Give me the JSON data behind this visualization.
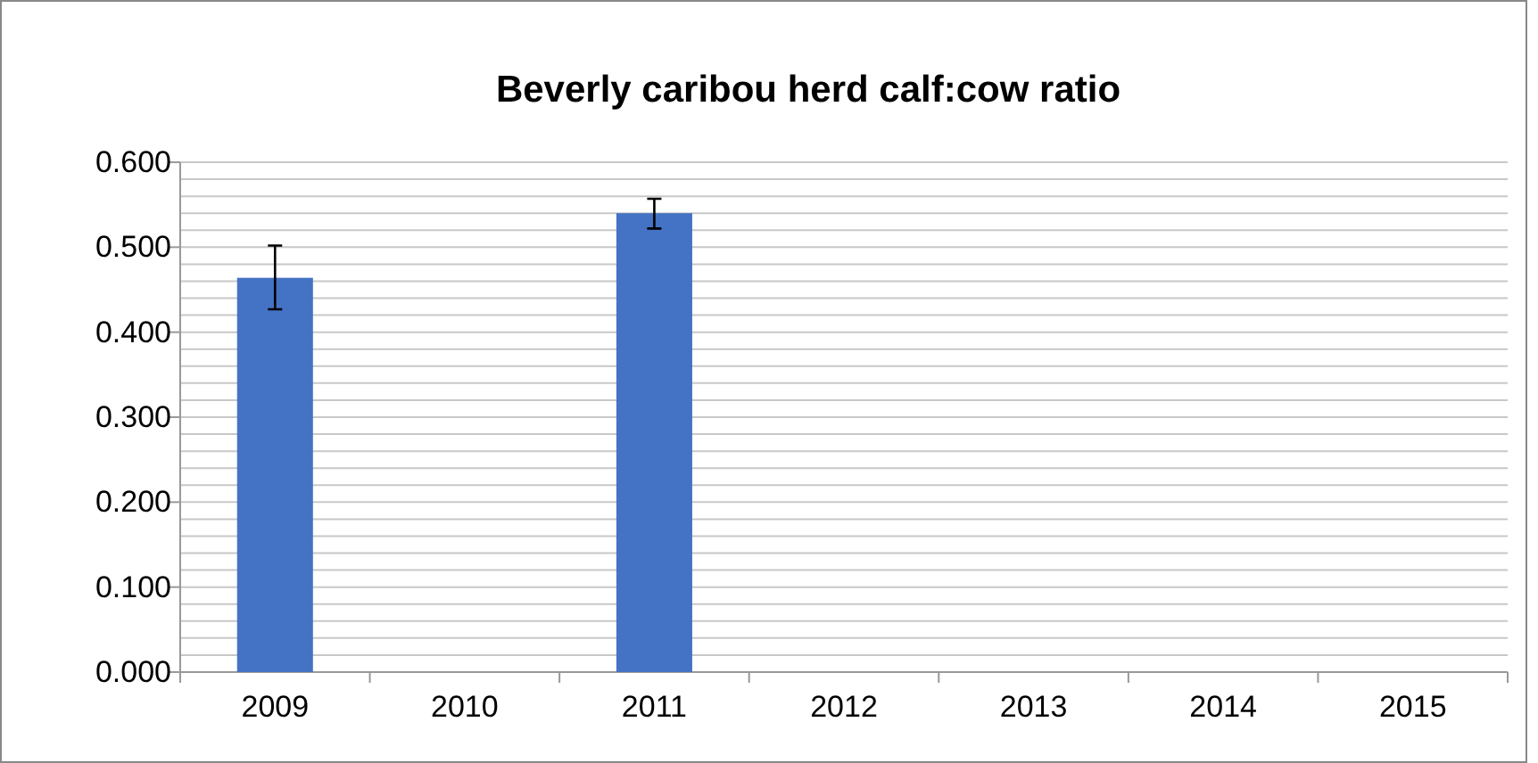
{
  "chart_data": {
    "type": "bar",
    "title": "Beverly caribou herd calf:cow ratio",
    "categories": [
      "2009",
      "2010",
      "2011",
      "2012",
      "2013",
      "2014",
      "2015"
    ],
    "values": [
      0.464,
      null,
      0.54,
      null,
      null,
      null,
      null
    ],
    "errors": [
      [
        0.427,
        0.502
      ],
      null,
      [
        0.522,
        0.557
      ],
      null,
      null,
      null,
      null
    ],
    "color": "#4472c4",
    "ylim": [
      0,
      0.6
    ],
    "yticks": [
      {
        "value": 0,
        "label": "0.000"
      },
      {
        "value": 0.02,
        "label": null
      },
      {
        "value": 0.04,
        "label": null
      },
      {
        "value": 0.06,
        "label": null
      },
      {
        "value": 0.08,
        "label": null
      },
      {
        "value": 0.1,
        "label": "0.100"
      },
      {
        "value": 0.12,
        "label": null
      },
      {
        "value": 0.14,
        "label": null
      },
      {
        "value": 0.16,
        "label": null
      },
      {
        "value": 0.18,
        "label": null
      },
      {
        "value": 0.2,
        "label": "0.200"
      },
      {
        "value": 0.22,
        "label": null
      },
      {
        "value": 0.24,
        "label": null
      },
      {
        "value": 0.26,
        "label": null
      },
      {
        "value": 0.28,
        "label": null
      },
      {
        "value": 0.3,
        "label": "0.300"
      },
      {
        "value": 0.32,
        "label": null
      },
      {
        "value": 0.34,
        "label": null
      },
      {
        "value": 0.36,
        "label": null
      },
      {
        "value": 0.38,
        "label": null
      },
      {
        "value": 0.4,
        "label": "0.400"
      },
      {
        "value": 0.42,
        "label": null
      },
      {
        "value": 0.44,
        "label": null
      },
      {
        "value": 0.46,
        "label": null
      },
      {
        "value": 0.48,
        "label": null
      },
      {
        "value": 0.5,
        "label": "0.500"
      },
      {
        "value": 0.52,
        "label": null
      },
      {
        "value": 0.54,
        "label": null
      },
      {
        "value": 0.56,
        "label": null
      },
      {
        "value": 0.58,
        "label": null
      },
      {
        "value": 0.6,
        "label": "0.600"
      }
    ],
    "grid": "y"
  }
}
